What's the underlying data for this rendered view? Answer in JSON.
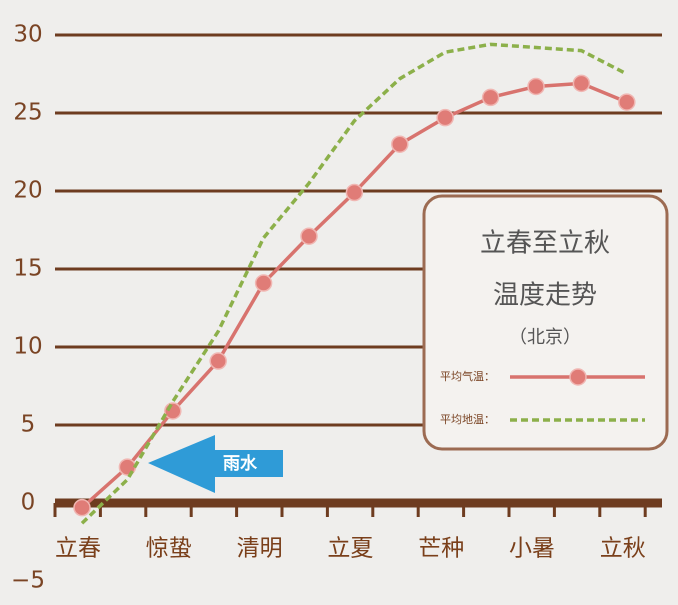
{
  "chart_data": {
    "type": "line",
    "legend_title": [
      "立春至立秋",
      "温度走势",
      "（北京）"
    ],
    "annotation": "雨水",
    "categories": [
      "立春",
      null,
      "惊蛰",
      null,
      "清明",
      null,
      "立夏",
      null,
      "芒种",
      null,
      "小暑",
      null,
      "立秋"
    ],
    "series": [
      {
        "name": "平均气温：",
        "color": "#d8736e",
        "style": "solid",
        "markers": true,
        "values": [
          -0.3,
          2.3,
          5.9,
          9.1,
          14.1,
          17.1,
          19.9,
          23.0,
          24.7,
          26.0,
          26.7,
          26.9,
          25.7
        ]
      },
      {
        "name": "平均地温：",
        "color": "#8cb04a",
        "style": "dashed",
        "markers": false,
        "values": [
          -1.3,
          1.5,
          6.5,
          11.0,
          17.0,
          20.5,
          24.5,
          27.2,
          28.9,
          29.4,
          29.2,
          29.0,
          27.5
        ]
      }
    ],
    "ylim": [
      -5,
      30
    ],
    "yticks": [
      {
        "value": -5,
        "label": "−5"
      },
      0,
      5,
      10,
      15,
      20,
      25,
      30
    ],
    "grid": true
  }
}
